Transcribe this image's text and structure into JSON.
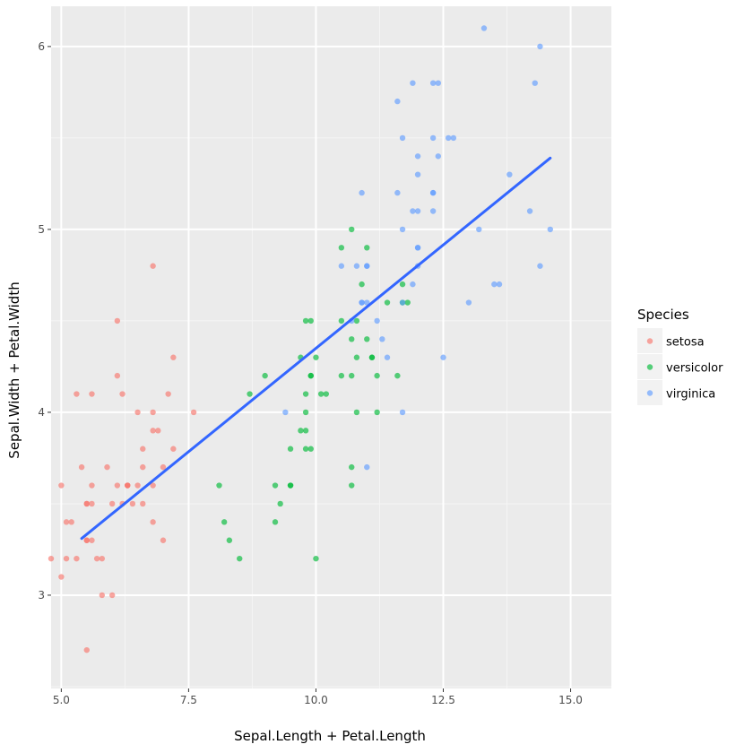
{
  "chart_data": {
    "type": "scatter",
    "title": "",
    "xlabel": "Sepal.Length + Petal.Length",
    "ylabel": "Sepal.Width + Petal.Width",
    "xlim": [
      4.8,
      15.8
    ],
    "ylim": [
      2.49,
      6.22
    ],
    "x_ticks": [
      5.0,
      7.5,
      10.0,
      12.5,
      15.0
    ],
    "x_tick_labels": [
      "5.0",
      "7.5",
      "10.0",
      "12.5",
      "15.0"
    ],
    "y_ticks": [
      3,
      4,
      5,
      6
    ],
    "y_tick_labels": [
      "3",
      "4",
      "5",
      "6"
    ],
    "grid": true,
    "panel_background": "#ebebeb",
    "legend": {
      "title": "Species",
      "placement": "right"
    },
    "series": [
      {
        "name": "setosa",
        "color": "#f8766d",
        "points": [
          [
            5.5,
            3.5
          ],
          [
            5.3,
            3.2
          ],
          [
            5.1,
            3.4
          ],
          [
            5.6,
            3.5
          ],
          [
            6.8,
            4.8
          ],
          [
            5.9,
            3.7
          ],
          [
            5.7,
            3.2
          ],
          [
            4.8,
            3.2
          ],
          [
            5.1,
            3.2
          ],
          [
            6.1,
            4.2
          ],
          [
            5.6,
            3.6
          ],
          [
            5.0,
            3.6
          ],
          [
            5.6,
            3.3
          ],
          [
            6.1,
            4.5
          ],
          [
            7.0,
            3.3
          ],
          [
            6.6,
            3.7
          ],
          [
            5.5,
            3.3
          ],
          [
            6.5,
            4.0
          ],
          [
            6.0,
            3.5
          ],
          [
            5.4,
            3.7
          ],
          [
            5.0,
            3.1
          ],
          [
            6.2,
            4.1
          ],
          [
            6.3,
            3.6
          ],
          [
            5.5,
            3.5
          ],
          [
            5.3,
            4.1
          ],
          [
            6.9,
            3.9
          ],
          [
            7.2,
            3.8
          ],
          [
            6.4,
            3.5
          ],
          [
            6.8,
            3.4
          ],
          [
            6.8,
            4.0
          ],
          [
            6.1,
            3.6
          ],
          [
            7.6,
            4.0
          ],
          [
            6.6,
            3.8
          ],
          [
            6.0,
            3.0
          ],
          [
            5.8,
            3.0
          ],
          [
            5.5,
            2.7
          ],
          [
            6.2,
            3.5
          ],
          [
            6.5,
            3.6
          ],
          [
            7.0,
            3.7
          ],
          [
            5.2,
            3.4
          ],
          [
            5.6,
            4.1
          ],
          [
            7.2,
            4.3
          ],
          [
            6.3,
            3.6
          ],
          [
            6.8,
            3.6
          ],
          [
            5.5,
            3.3
          ],
          [
            7.1,
            4.1
          ],
          [
            6.6,
            3.5
          ],
          [
            6.8,
            3.9
          ],
          [
            5.8,
            3.2
          ],
          [
            6.3,
            3.6
          ]
        ]
      },
      {
        "name": "versicolor",
        "color": "#00ba38",
        "points": [
          [
            11.7,
            4.6
          ],
          [
            10.9,
            4.7
          ],
          [
            11.8,
            4.6
          ],
          [
            9.5,
            3.6
          ],
          [
            11.1,
            4.3
          ],
          [
            10.2,
            4.1
          ],
          [
            11.0,
            4.9
          ],
          [
            8.2,
            3.4
          ],
          [
            11.2,
            4.2
          ],
          [
            8.7,
            4.1
          ],
          [
            8.5,
            3.2
          ],
          [
            9.8,
            4.5
          ],
          [
            10.0,
            3.2
          ],
          [
            10.8,
            4.3
          ],
          [
            9.0,
            4.2
          ],
          [
            10.8,
            4.5
          ],
          [
            10.0,
            4.3
          ],
          [
            9.8,
            3.9
          ],
          [
            10.7,
            3.7
          ],
          [
            9.5,
            3.6
          ],
          [
            10.7,
            5.0
          ],
          [
            10.1,
            4.1
          ],
          [
            11.2,
            4.0
          ],
          [
            10.8,
            4.0
          ],
          [
            10.7,
            4.2
          ],
          [
            11.0,
            4.4
          ],
          [
            11.6,
            4.2
          ],
          [
            11.7,
            4.7
          ],
          [
            10.5,
            4.5
          ],
          [
            9.2,
            3.6
          ],
          [
            9.3,
            3.5
          ],
          [
            9.2,
            3.4
          ],
          [
            9.7,
            3.9
          ],
          [
            11.1,
            4.3
          ],
          [
            9.9,
            4.5
          ],
          [
            10.5,
            4.9
          ],
          [
            11.4,
            4.6
          ],
          [
            10.7,
            3.6
          ],
          [
            9.7,
            4.3
          ],
          [
            9.5,
            3.8
          ],
          [
            9.9,
            3.8
          ],
          [
            10.7,
            4.4
          ],
          [
            9.8,
            3.8
          ],
          [
            8.3,
            3.3
          ],
          [
            9.8,
            4.0
          ],
          [
            9.9,
            4.2
          ],
          [
            9.9,
            4.2
          ],
          [
            10.5,
            4.2
          ],
          [
            8.1,
            3.6
          ],
          [
            9.8,
            4.1
          ]
        ]
      },
      {
        "name": "virginica",
        "color": "#619cff",
        "points": [
          [
            12.3,
            5.8
          ],
          [
            10.9,
            4.6
          ],
          [
            12.0,
            5.1
          ],
          [
            11.9,
            4.7
          ],
          [
            12.3,
            5.2
          ],
          [
            14.2,
            5.1
          ],
          [
            9.4,
            4.0
          ],
          [
            13.6,
            4.7
          ],
          [
            12.5,
            4.3
          ],
          [
            13.3,
            6.1
          ],
          [
            11.6,
            5.2
          ],
          [
            11.7,
            4.6
          ],
          [
            12.3,
            5.1
          ],
          [
            10.7,
            4.5
          ],
          [
            10.9,
            5.2
          ],
          [
            11.7,
            5.5
          ],
          [
            12.0,
            4.8
          ],
          [
            14.4,
            6.0
          ],
          [
            14.6,
            5.0
          ],
          [
            11.0,
            3.7
          ],
          [
            12.6,
            5.5
          ],
          [
            10.5,
            4.8
          ],
          [
            14.4,
            4.8
          ],
          [
            11.2,
            4.5
          ],
          [
            12.4,
            5.4
          ],
          [
            13.2,
            5.0
          ],
          [
            11.0,
            4.6
          ],
          [
            11.0,
            4.8
          ],
          [
            12.0,
            4.9
          ],
          [
            13.0,
            4.6
          ],
          [
            13.5,
            4.7
          ],
          [
            14.3,
            5.8
          ],
          [
            12.0,
            4.9
          ],
          [
            11.4,
            4.3
          ],
          [
            11.7,
            4.0
          ],
          [
            13.8,
            5.3
          ],
          [
            11.9,
            5.8
          ],
          [
            11.9,
            5.1
          ],
          [
            10.8,
            4.8
          ],
          [
            12.3,
            5.2
          ],
          [
            12.3,
            5.5
          ],
          [
            12.0,
            5.4
          ],
          [
            10.9,
            4.6
          ],
          [
            12.7,
            5.5
          ],
          [
            12.4,
            5.8
          ],
          [
            12.0,
            5.3
          ],
          [
            11.3,
            4.4
          ],
          [
            11.7,
            5.0
          ],
          [
            11.6,
            5.7
          ],
          [
            11.0,
            4.8
          ]
        ]
      }
    ],
    "trend_line": {
      "color": "#3366ff",
      "x": [
        5.4,
        14.6
      ],
      "y": [
        3.31,
        5.39
      ]
    }
  }
}
